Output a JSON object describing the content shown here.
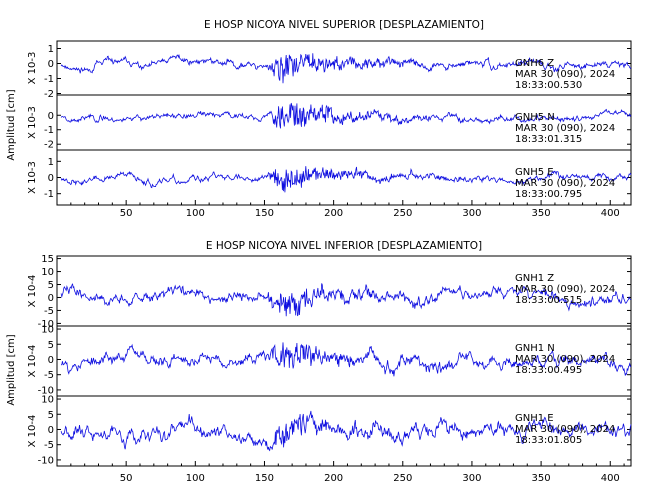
{
  "panels": [
    {
      "title": "E HOSP NICOYA NIVEL SUPERIOR [DESPLAZAMIENTO]",
      "ylabel": "Amplitud [cm]",
      "xticks": [
        50,
        100,
        150,
        200,
        250,
        300,
        350,
        400
      ],
      "xlim": [
        0,
        415
      ],
      "traces": [
        {
          "station": "GNH6",
          "component": "Z",
          "scale": "X 10-3",
          "date": "MAR 30 (090), 2024",
          "time": "18:33:00.530",
          "yticks": [
            1,
            0,
            -1,
            -2
          ],
          "ylim": [
            -2.1,
            1.5
          ],
          "noise_amp": 0.4,
          "event_amp": 1.2,
          "seed": 11
        },
        {
          "station": "GNH5",
          "component": "N",
          "scale": "X 10-3",
          "date": "MAR 30 (090), 2024",
          "time": "18:33:01.315",
          "yticks": [
            0,
            -1,
            -2
          ],
          "ylim": [
            -2.4,
            1.4
          ],
          "noise_amp": 0.35,
          "event_amp": 1.3,
          "seed": 23
        },
        {
          "station": "GNH5",
          "component": "E",
          "scale": "X 10-3",
          "date": "MAR 30 (090), 2024",
          "time": "18:33:00.795",
          "yticks": [
            1,
            0,
            -1
          ],
          "ylim": [
            -1.7,
            1.7
          ],
          "noise_amp": 0.35,
          "event_amp": 1.0,
          "seed": 37
        }
      ]
    },
    {
      "title": "E HOSP NICOYA NIVEL INFERIOR [DESPLAZAMIENTO]",
      "ylabel": "Amplitud [cm]",
      "xticks": [
        50,
        100,
        150,
        200,
        250,
        300,
        350,
        400
      ],
      "xlim": [
        0,
        415
      ],
      "traces": [
        {
          "station": "GNH1",
          "component": "Z",
          "scale": "X 10-4",
          "date": "MAR 30 (090), 2024",
          "time": "18:33:00.515",
          "yticks": [
            15,
            10,
            5,
            0,
            -5,
            -10
          ],
          "ylim": [
            -11,
            16
          ],
          "noise_amp": 3.5,
          "event_amp": 6,
          "seed": 41
        },
        {
          "station": "GNH1",
          "component": "N",
          "scale": "X 10-4",
          "date": "MAR 30 (090), 2024",
          "time": "18:33:00.495",
          "yticks": [
            10,
            5,
            0,
            -5,
            -10
          ],
          "ylim": [
            -12,
            11
          ],
          "noise_amp": 3.5,
          "event_amp": 5,
          "seed": 53
        },
        {
          "station": "GNH1",
          "component": "E",
          "scale": "X 10-4",
          "date": "MAR 30 (090), 2024",
          "time": "18:33:01.805",
          "yticks": [
            10,
            5,
            0,
            -5,
            -10
          ],
          "ylim": [
            -12,
            11
          ],
          "noise_amp": 4.0,
          "event_amp": 5,
          "seed": 67
        }
      ]
    }
  ],
  "colors": {
    "trace": "#1010e0",
    "axis": "#000000"
  },
  "chart_data": [
    {
      "type": "line",
      "title": "E HOSP NICOYA NIVEL SUPERIOR [DESPLAZAMIENTO]",
      "xlabel": "",
      "ylabel": "Amplitud [cm]",
      "xlim": [
        0,
        415
      ],
      "series": [
        {
          "name": "GNH6 Z",
          "units": "X 10-3",
          "ylim": [
            -2.1,
            1.5
          ]
        },
        {
          "name": "GNH5 N",
          "units": "X 10-3",
          "ylim": [
            -2.4,
            1.4
          ]
        },
        {
          "name": "GNH5 E",
          "units": "X 10-3",
          "ylim": [
            -1.7,
            1.7
          ]
        }
      ]
    },
    {
      "type": "line",
      "title": "E HOSP NICOYA NIVEL INFERIOR [DESPLAZAMIENTO]",
      "xlabel": "",
      "ylabel": "Amplitud [cm]",
      "xlim": [
        0,
        415
      ],
      "series": [
        {
          "name": "GNH1 Z",
          "units": "X 10-4",
          "ylim": [
            -11,
            16
          ]
        },
        {
          "name": "GNH1 N",
          "units": "X 10-4",
          "ylim": [
            -12,
            11
          ]
        },
        {
          "name": "GNH1 E",
          "units": "X 10-4",
          "ylim": [
            -12,
            11
          ]
        }
      ]
    }
  ]
}
